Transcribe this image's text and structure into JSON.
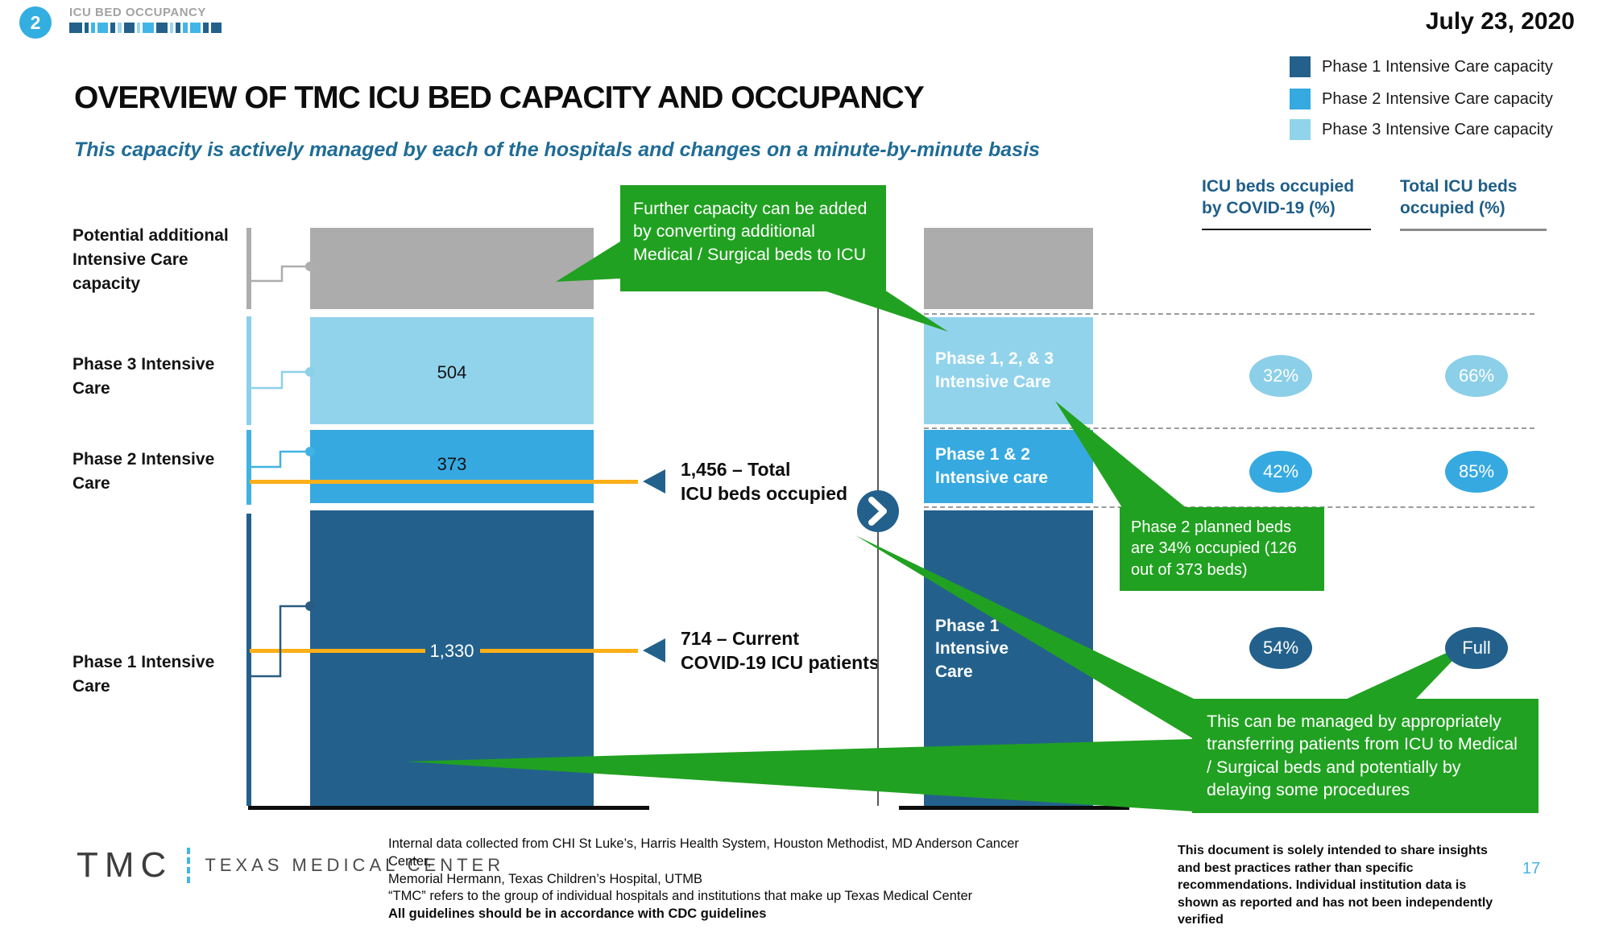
{
  "header": {
    "page_indicator": "2",
    "section_label": "ICU BED OCCUPANCY",
    "date": "July 23, 2020",
    "dash_pattern": {
      "colors": {
        "d": "#23618C",
        "m": "#41B6E6",
        "l": "#9AD6EE"
      },
      "dashes": [
        [
          "d",
          16
        ],
        [
          "d",
          5
        ],
        [
          "m",
          5
        ],
        [
          "m",
          13
        ],
        [
          "d",
          6
        ],
        [
          "l",
          5
        ],
        [
          "d",
          13
        ],
        [
          "l",
          4
        ],
        [
          "m",
          14
        ],
        [
          "d",
          14
        ],
        [
          "l",
          4
        ],
        [
          "d",
          6
        ],
        [
          "m",
          6
        ],
        [
          "m",
          13
        ],
        [
          "d",
          7
        ],
        [
          "d",
          13
        ]
      ]
    }
  },
  "legend": {
    "items": [
      {
        "label": "Phase 1 Intensive Care capacity",
        "color": "#23618C"
      },
      {
        "label": "Phase 2 Intensive Care capacity",
        "color": "#36A9E1"
      },
      {
        "label": "Phase 3 Intensive Care capacity",
        "color": "#92D3EC"
      }
    ]
  },
  "title": "OVERVIEW OF TMC ICU BED CAPACITY AND OCCUPANCY",
  "subtitle": "This capacity is actively managed by each of the hospitals and changes on a minute-by-minute basis",
  "chart_data": {
    "type": "bar",
    "layout": "two stacked vertical capacity bars; left bar shows bed counts, right bar maps phases to occupancy percentages",
    "left_bar": {
      "segments": [
        {
          "label": "Potential additional Intensive Care capacity",
          "value": null,
          "display": "",
          "color": "#ACACAC"
        },
        {
          "label": "Phase 3 Intensive Care",
          "value": 504,
          "display": "504",
          "color": "#92D3EC"
        },
        {
          "label": "Phase 2 Intensive Care",
          "value": 373,
          "display": "373",
          "color": "#36A9E1"
        },
        {
          "label": "Phase 1 Intensive Care",
          "value": 1330,
          "display": "1,330",
          "color": "#23618C"
        }
      ],
      "markers": [
        {
          "value": 1456,
          "line1": "1,456 – Total",
          "line2": "ICU beds occupied"
        },
        {
          "value": 714,
          "line1": "714 – Current",
          "line2": "COVID-19 ICU patients"
        }
      ],
      "marker_line_color": "#FCAF17"
    },
    "right_bar": {
      "columns": [
        {
          "header": "ICU beds occupied by COVID-19 (%)"
        },
        {
          "header": "Total ICU beds occupied (%)"
        }
      ],
      "segments": [
        {
          "label": "",
          "color": "#ACACAC",
          "covid_pct": "",
          "total_pct": ""
        },
        {
          "label": "Phase 1, 2, & 3 Intensive Care",
          "color": "#92D3EC",
          "covid_pct": "32%",
          "total_pct": "66%"
        },
        {
          "label": "Phase 1 & 2 Intensive care",
          "color": "#36A9E1",
          "covid_pct": "42%",
          "total_pct": "85%"
        },
        {
          "label": "Phase 1 Intensive Care",
          "color": "#23618C",
          "covid_pct": "54%",
          "total_pct": "Full"
        }
      ]
    },
    "callouts": [
      {
        "text": "Further capacity can be added by converting additional Medical / Surgical beds to ICU",
        "color": "#21A121"
      },
      {
        "text": "Phase 2 planned beds are 34% occupied (126 out of 373 beds)",
        "color": "#21A121"
      },
      {
        "text": "This can be managed by appropriately transferring patients from ICU to Medical / Surgical beds and potentially by delaying some procedures",
        "color": "#21A121"
      }
    ]
  },
  "footer": {
    "logo_text": "TMC",
    "logo_subtext": "TEXAS MEDICAL CENTER",
    "source_lines": [
      "Internal data collected from CHI St Luke’s, Harris Health System, Houston Methodist, MD Anderson Cancer Center,",
      "Memorial Hermann, Texas Children’s Hospital, UTMB",
      "“TMC” refers to the group of individual hospitals and institutions that make up Texas Medical Center"
    ],
    "source_bold_line": "All guidelines should be in accordance with CDC guidelines",
    "disclaimer": "This document is solely intended to share insights and best practices rather than specific recommendations. Individual institution data is shown as reported and has not been independently verified",
    "page_number": "17"
  }
}
